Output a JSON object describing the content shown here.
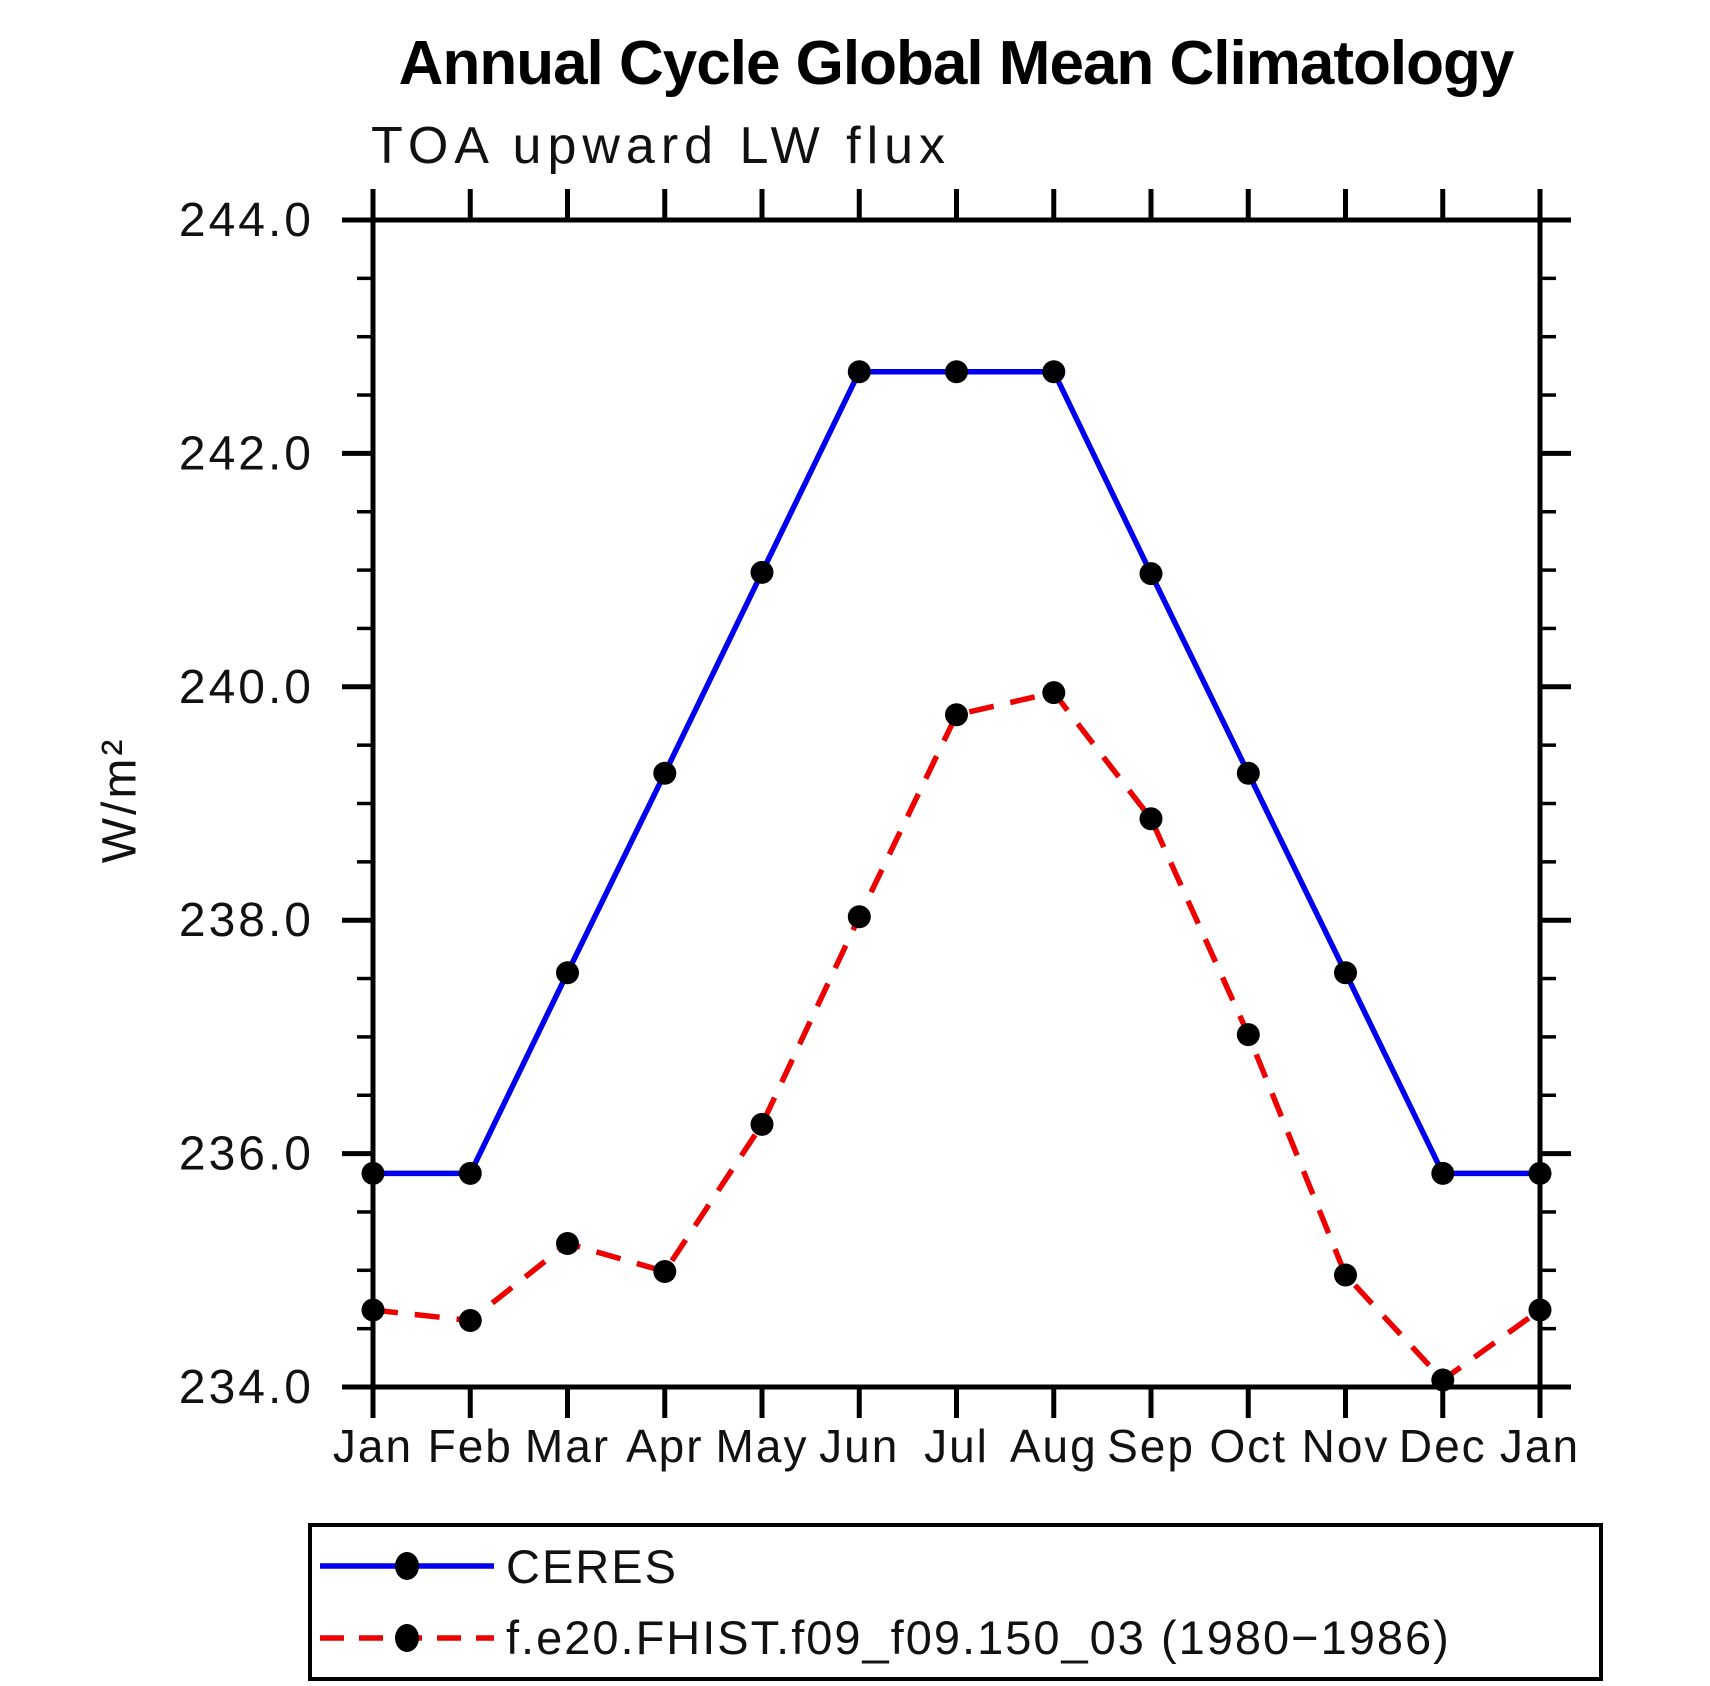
{
  "header": {
    "title": "Annual Cycle Global Mean Climatology",
    "subtitle": "TOA upward LW flux"
  },
  "chart_data": {
    "type": "line",
    "title": "Annual Cycle Global Mean Climatology",
    "subtitle": "TOA upward LW flux",
    "xlabel": "",
    "ylabel": "W/m²",
    "categories": [
      "Jan",
      "Feb",
      "Mar",
      "Apr",
      "May",
      "Jun",
      "Jul",
      "Aug",
      "Sep",
      "Oct",
      "Nov",
      "Dec",
      "Jan"
    ],
    "series": [
      {
        "name": "CERES",
        "color": "#0000ee",
        "line_style": "solid",
        "marker": "filled-circle",
        "marker_color": "#000000",
        "values": [
          235.83,
          235.83,
          237.55,
          239.26,
          240.98,
          242.7,
          242.7,
          242.7,
          240.97,
          239.26,
          237.55,
          235.83,
          235.83
        ]
      },
      {
        "name": "f.e20.FHIST.f09_f09.150_03 (1980−1986)",
        "color": "#ee0000",
        "line_style": "dashed",
        "marker": "filled-circle",
        "marker_color": "#000000",
        "values": [
          234.66,
          234.57,
          235.23,
          234.99,
          236.25,
          238.03,
          239.76,
          239.95,
          238.87,
          237.02,
          234.96,
          234.06,
          234.66
        ]
      }
    ],
    "ylim": [
      234.0,
      244.0
    ],
    "yticks_major": [
      234.0,
      236.0,
      238.0,
      240.0,
      242.0,
      244.0
    ],
    "ytick_labels": [
      "234.0",
      "236.0",
      "238.0",
      "240.0",
      "242.0",
      "244.0"
    ],
    "ytick_minor_step": 0.5,
    "grid": false,
    "legend_position": "bottom-left-box"
  }
}
